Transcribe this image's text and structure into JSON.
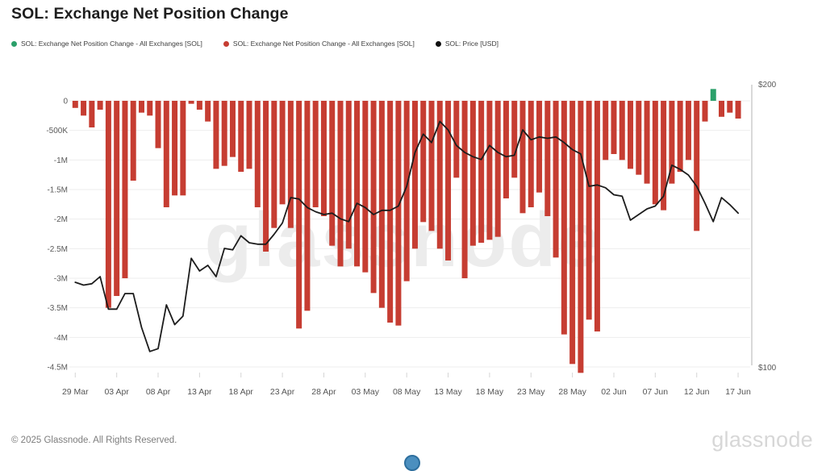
{
  "header": {
    "title": "SOL: Exchange Net Position Change"
  },
  "legend": {
    "items": [
      {
        "label": "SOL: Exchange Net Position Change - All Exchanges [SOL]",
        "color": "#2ba06a",
        "marker": "dot"
      },
      {
        "label": "SOL: Exchange Net Position Change - All Exchanges [SOL]",
        "color": "#c63d32",
        "marker": "dot"
      },
      {
        "label": "SOL: Price [USD]",
        "color": "#111111",
        "marker": "dot"
      }
    ]
  },
  "watermark": {
    "text": "glassnode"
  },
  "footer": {
    "copyright": "© 2025 Glassnode. All Rights Reserved.",
    "brand": "glassnode"
  },
  "chart_data": {
    "type": "bar+line",
    "title": "SOL: Exchange Net Position Change",
    "x_unit": "day",
    "x_tick_labels": [
      "29 Mar",
      "03 Apr",
      "08 Apr",
      "13 Apr",
      "18 Apr",
      "23 Apr",
      "28 Apr",
      "03 May",
      "08 May",
      "13 May",
      "18 May",
      "23 May",
      "28 May",
      "02 Jun",
      "07 Jun",
      "12 Jun",
      "17 Jun"
    ],
    "x_tick_indices": [
      0,
      5,
      10,
      15,
      20,
      25,
      30,
      35,
      40,
      45,
      50,
      55,
      60,
      65,
      70,
      75,
      80
    ],
    "grid": true,
    "legend_position": "top-left",
    "left_axis": {
      "label": "Exchange Net Position Change [SOL]",
      "tick_labels": [
        "0",
        "-500K",
        "-1M",
        "-1.5M",
        "-2M",
        "-2.5M",
        "-3M",
        "-3.5M",
        "-4M",
        "-4.5M"
      ],
      "tick_values": [
        0,
        -500000,
        -1000000,
        -1500000,
        -2000000,
        -2500000,
        -3000000,
        -3500000,
        -4000000,
        -4500000
      ],
      "range": [
        -4800000,
        280000
      ]
    },
    "right_axis": {
      "label": "Price [USD]",
      "tick_labels": [
        "$200",
        "$100"
      ],
      "tick_values": [
        200,
        100
      ],
      "range": [
        100,
        200
      ]
    },
    "series": [
      {
        "name": "SOL: Exchange Net Position Change - All Exchanges [SOL]",
        "type": "bar",
        "axis": "left",
        "color_negative": "#c63d32",
        "color_positive": "#2ba06a",
        "values": [
          -120000,
          -250000,
          -450000,
          -150000,
          -3500000,
          -3300000,
          -3000000,
          -1350000,
          -200000,
          -250000,
          -800000,
          -1800000,
          -1600000,
          -1600000,
          -50000,
          -150000,
          -350000,
          -1150000,
          -1100000,
          -950000,
          -1200000,
          -1150000,
          -1800000,
          -2550000,
          -2150000,
          -1750000,
          -2150000,
          -3850000,
          -3550000,
          -1800000,
          -1950000,
          -2450000,
          -2800000,
          -2500000,
          -2800000,
          -2900000,
          -3250000,
          -3500000,
          -3750000,
          -3800000,
          -3050000,
          -2500000,
          -2050000,
          -2200000,
          -2500000,
          -2700000,
          -1300000,
          -3000000,
          -2450000,
          -2400000,
          -2350000,
          -2300000,
          -1650000,
          -1300000,
          -1900000,
          -1800000,
          -1550000,
          -1950000,
          -2650000,
          -3950000,
          -4450000,
          -4600000,
          -3700000,
          -3900000,
          -1000000,
          -900000,
          -1000000,
          -1150000,
          -1250000,
          -1400000,
          -1750000,
          -1850000,
          -1400000,
          -1200000,
          -1000000,
          -2200000,
          -350000,
          200000,
          -270000,
          -200000,
          -300000
        ]
      },
      {
        "name": "SOL: Price [USD]",
        "type": "line",
        "axis": "right",
        "color": "#1c1c1c",
        "values": [
          130,
          129,
          129.5,
          132,
          120.5,
          120.5,
          126,
          126,
          114,
          105.5,
          106.5,
          122,
          115,
          118,
          138.5,
          134,
          136,
          132,
          142,
          141.5,
          146.5,
          144,
          143.5,
          143.5,
          147,
          151,
          160,
          159.5,
          156.5,
          155,
          154,
          154.5,
          152.5,
          151.5,
          158,
          156.5,
          154,
          155.5,
          155.5,
          157,
          164,
          176,
          182.5,
          179.5,
          187,
          184,
          178.5,
          176,
          174.5,
          173.5,
          178.5,
          176,
          174.5,
          175,
          184,
          180.5,
          181.5,
          181,
          181.5,
          179.5,
          177,
          175.5,
          164,
          164.5,
          163.5,
          161,
          160.5,
          152,
          154,
          156,
          157,
          160.5,
          171.5,
          170,
          168,
          164,
          158,
          151.5,
          160,
          157.5,
          154.5
        ]
      }
    ]
  }
}
